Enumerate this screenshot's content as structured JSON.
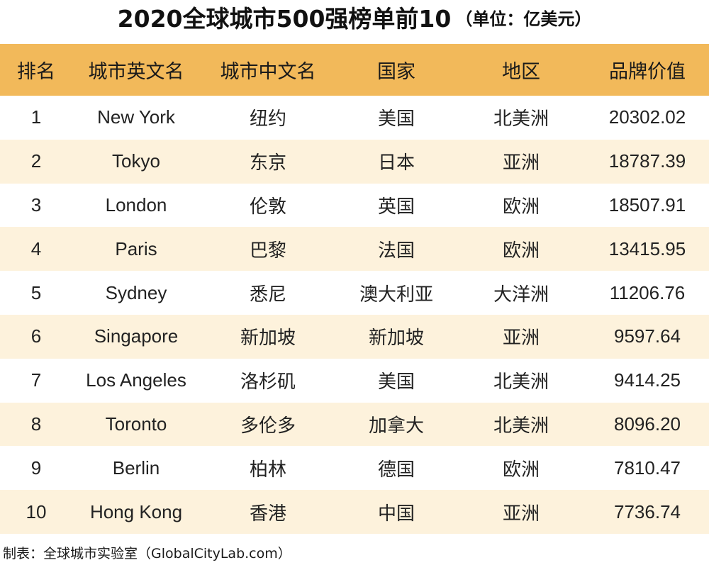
{
  "title": "2020全球城市500强榜单前10",
  "unit": "（单位：亿美元）",
  "headers": [
    "排名",
    "城市英文名",
    "城市中文名",
    "国家",
    "地区",
    "品牌价值"
  ],
  "rows": [
    {
      "rank": "1",
      "en": "New York",
      "cn": "纽约",
      "country": "美国",
      "region": "北美洲",
      "value": "20302.02"
    },
    {
      "rank": "2",
      "en": "Tokyo",
      "cn": "东京",
      "country": "日本",
      "region": "亚洲",
      "value": "18787.39"
    },
    {
      "rank": "3",
      "en": "London",
      "cn": "伦敦",
      "country": "英国",
      "region": "欧洲",
      "value": "18507.91"
    },
    {
      "rank": "4",
      "en": "Paris",
      "cn": "巴黎",
      "country": "法国",
      "region": "欧洲",
      "value": "13415.95"
    },
    {
      "rank": "5",
      "en": "Sydney",
      "cn": "悉尼",
      "country": "澳大利亚",
      "region": "大洋洲",
      "value": "11206.76"
    },
    {
      "rank": "6",
      "en": "Singapore",
      "cn": "新加坡",
      "country": "新加坡",
      "region": "亚洲",
      "value": "9597.64"
    },
    {
      "rank": "7",
      "en": "Los Angeles",
      "cn": "洛杉矶",
      "country": "美国",
      "region": "北美洲",
      "value": "9414.25"
    },
    {
      "rank": "8",
      "en": "Toronto",
      "cn": "多伦多",
      "country": "加拿大",
      "region": "北美洲",
      "value": "8096.20"
    },
    {
      "rank": "9",
      "en": "Berlin",
      "cn": "柏林",
      "country": "德国",
      "region": "欧洲",
      "value": "7810.47"
    },
    {
      "rank": "10",
      "en": "Hong Kong",
      "cn": "香港",
      "country": "中国",
      "region": "亚洲",
      "value": "7736.74"
    }
  ],
  "footer": "制表：全球城市实验室（GlobalCityLab.com）",
  "colors": {
    "header_bg": "#f2b95a",
    "stripe_bg": "#fdf2dc",
    "row_bg": "#ffffff"
  }
}
